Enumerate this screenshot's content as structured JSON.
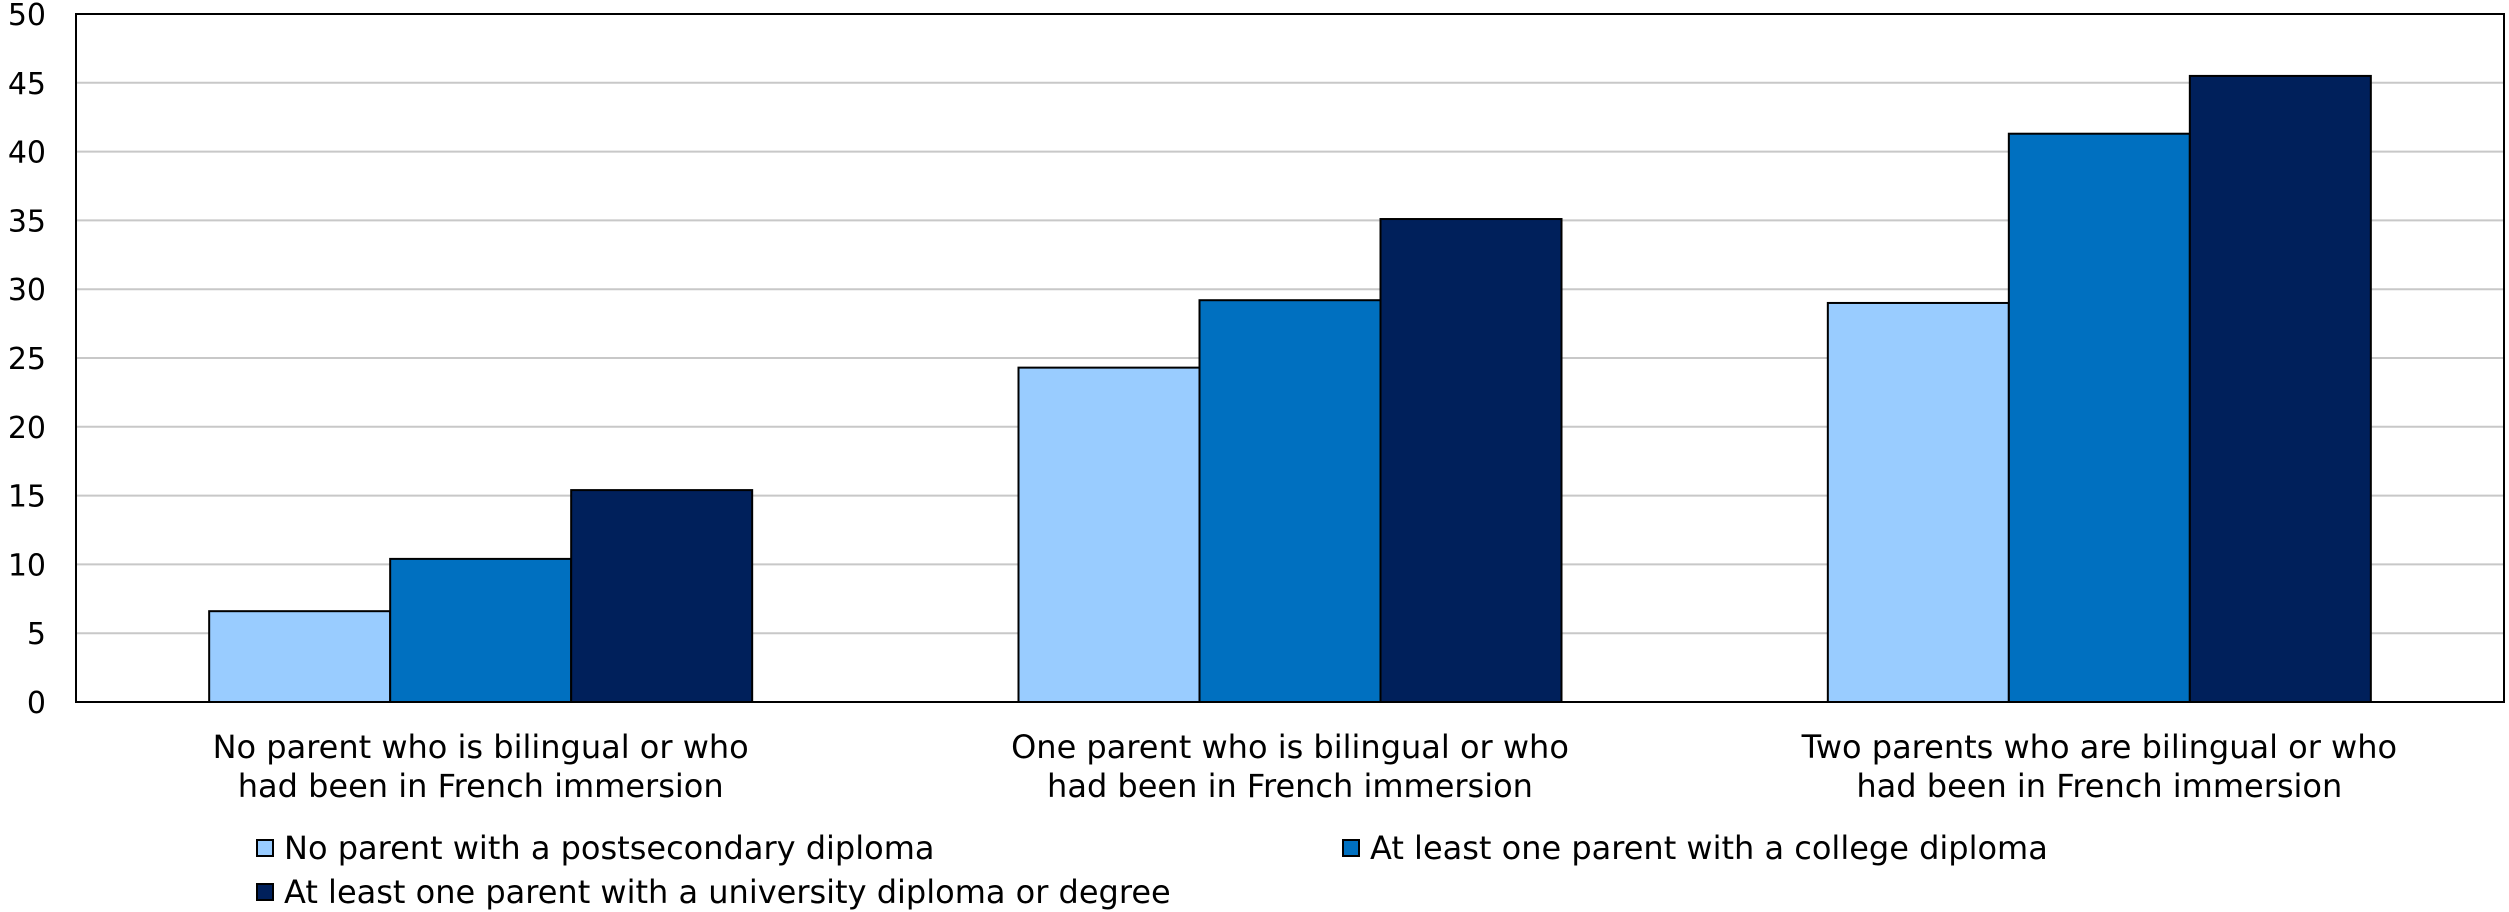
{
  "chart_data": {
    "type": "bar",
    "categories": [
      [
        "No parent who is bilingual or who",
        "had been in French immersion"
      ],
      [
        "One parent who is bilingual or who",
        "had been in French immersion"
      ],
      [
        "Two parents who are bilingual or who",
        "had been in French immersion"
      ]
    ],
    "series": [
      {
        "name": "No parent with a postsecondary diploma",
        "values": [
          6.6,
          24.3,
          29.0
        ],
        "color": "#99ccff"
      },
      {
        "name": "At least one parent with a college diploma",
        "values": [
          10.4,
          29.2,
          41.3
        ],
        "color": "#0070c0"
      },
      {
        "name": "At least one parent with a university diploma or degree",
        "values": [
          15.4,
          35.1,
          45.5
        ],
        "color": "#00205b"
      }
    ],
    "y_ticks": [
      "0",
      "5",
      "10",
      "15",
      "20",
      "25",
      "30",
      "35",
      "40",
      "45",
      "50"
    ],
    "ylim": [
      0,
      50
    ],
    "grid": true,
    "legend_position": "bottom"
  }
}
